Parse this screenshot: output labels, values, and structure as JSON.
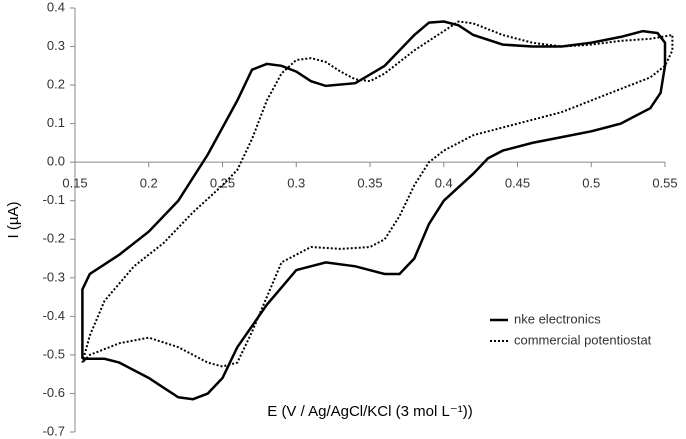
{
  "chart_data": {
    "type": "line",
    "x_label": "E (V / Ag/AgCl/KCl (3 mol L⁻¹))",
    "y_label": "I (µA)",
    "xlim": [
      0.15,
      0.55
    ],
    "ylim": [
      -0.7,
      0.4
    ],
    "xticks": [
      0.15,
      0.2,
      0.25,
      0.3,
      0.35,
      0.4,
      0.45,
      0.5,
      0.55
    ],
    "yticks": [
      0.4,
      0.3,
      0.2,
      0.1,
      {
        "value": 0,
        "label": "0.0"
      },
      -0.1,
      -0.2,
      -0.3,
      -0.4,
      -0.5,
      -0.6,
      -0.7
    ],
    "legend": "lower-right",
    "series": [
      {
        "name": "nke electronics",
        "color": "#000000",
        "dash": "solid",
        "x": [
          0.155,
          0.155,
          0.16,
          0.18,
          0.2,
          0.22,
          0.24,
          0.26,
          0.27,
          0.28,
          0.29,
          0.3,
          0.31,
          0.32,
          0.34,
          0.36,
          0.38,
          0.39,
          0.4,
          0.41,
          0.42,
          0.44,
          0.46,
          0.48,
          0.5,
          0.52,
          0.535,
          0.545,
          0.55,
          0.55,
          0.547,
          0.54,
          0.53,
          0.52,
          0.51,
          0.5,
          0.48,
          0.46,
          0.44,
          0.43,
          0.42,
          0.4,
          0.39,
          0.38,
          0.37,
          0.36,
          0.34,
          0.32,
          0.3,
          0.28,
          0.26,
          0.25,
          0.24,
          0.23,
          0.22,
          0.2,
          0.18,
          0.17,
          0.16,
          0.155
        ],
        "values": [
          -0.51,
          -0.33,
          -0.29,
          -0.24,
          -0.18,
          -0.1,
          0.02,
          0.16,
          0.24,
          0.255,
          0.25,
          0.235,
          0.21,
          0.198,
          0.205,
          0.25,
          0.33,
          0.362,
          0.365,
          0.355,
          0.33,
          0.305,
          0.3,
          0.3,
          0.31,
          0.325,
          0.34,
          0.335,
          0.31,
          0.25,
          0.18,
          0.14,
          0.12,
          0.1,
          0.09,
          0.08,
          0.065,
          0.05,
          0.03,
          0.01,
          -0.03,
          -0.1,
          -0.16,
          -0.25,
          -0.29,
          -0.29,
          -0.27,
          -0.26,
          -0.28,
          -0.37,
          -0.48,
          -0.56,
          -0.6,
          -0.615,
          -0.61,
          -0.56,
          -0.52,
          -0.51,
          -0.51,
          -0.51
        ]
      },
      {
        "name": "commercial potentiostat",
        "color": "#000000",
        "dash": "dotted",
        "x": [
          0.155,
          0.16,
          0.17,
          0.19,
          0.21,
          0.23,
          0.25,
          0.26,
          0.27,
          0.28,
          0.29,
          0.3,
          0.31,
          0.32,
          0.33,
          0.34,
          0.35,
          0.36,
          0.38,
          0.4,
          0.41,
          0.42,
          0.44,
          0.46,
          0.48,
          0.5,
          0.52,
          0.54,
          0.555,
          0.555,
          0.55,
          0.54,
          0.52,
          0.5,
          0.48,
          0.46,
          0.44,
          0.42,
          0.4,
          0.39,
          0.38,
          0.37,
          0.36,
          0.35,
          0.33,
          0.31,
          0.29,
          0.28,
          0.27,
          0.26,
          0.25,
          0.24,
          0.22,
          0.2,
          0.18,
          0.16,
          0.155
        ],
        "values": [
          -0.52,
          -0.45,
          -0.36,
          -0.27,
          -0.21,
          -0.13,
          -0.06,
          -0.02,
          0.06,
          0.16,
          0.23,
          0.265,
          0.27,
          0.26,
          0.235,
          0.215,
          0.21,
          0.23,
          0.29,
          0.34,
          0.365,
          0.36,
          0.33,
          0.31,
          0.3,
          0.305,
          0.315,
          0.32,
          0.33,
          0.29,
          0.25,
          0.22,
          0.19,
          0.16,
          0.13,
          0.11,
          0.09,
          0.07,
          0.03,
          0.0,
          -0.06,
          -0.14,
          -0.2,
          -0.22,
          -0.225,
          -0.22,
          -0.26,
          -0.35,
          -0.44,
          -0.52,
          -0.53,
          -0.52,
          -0.48,
          -0.455,
          -0.47,
          -0.5,
          -0.52
        ]
      }
    ]
  }
}
